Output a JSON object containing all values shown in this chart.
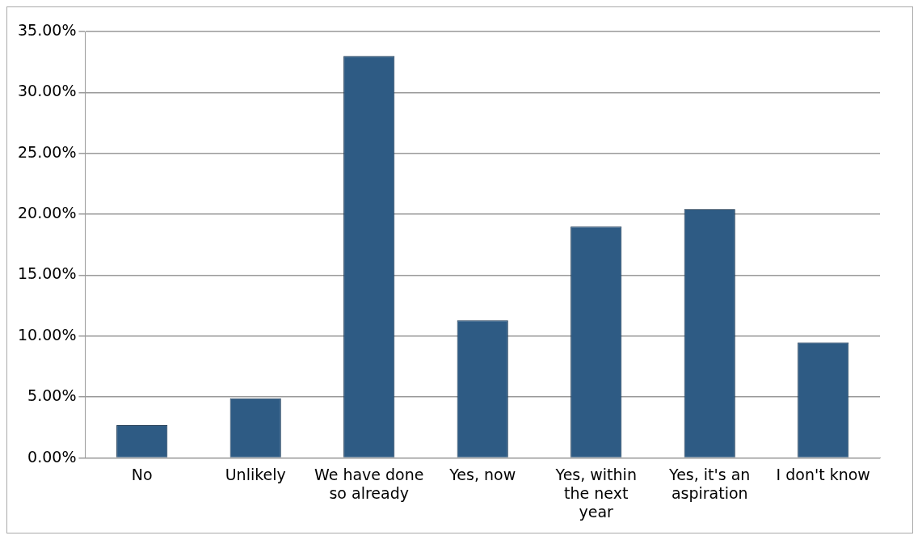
{
  "chart_data": {
    "type": "bar",
    "categories": [
      "No",
      "Unlikely",
      "We have done so already",
      "Yes, now",
      "Yes, within the next year",
      "Yes, it's an aspiration",
      "I don't know"
    ],
    "values": [
      2.7,
      4.9,
      33,
      11.3,
      19,
      20.4,
      9.5
    ],
    "color": "#2e5b84",
    "ylim": [
      0,
      35
    ],
    "yticks": [
      {
        "value": 0,
        "label": "0.00%"
      },
      {
        "value": 5,
        "label": "5.00%"
      },
      {
        "value": 10,
        "label": "10.00%"
      },
      {
        "value": 15,
        "label": "15.00%"
      },
      {
        "value": 20,
        "label": "20.00%"
      },
      {
        "value": 25,
        "label": "25.00%"
      },
      {
        "value": 30,
        "label": "30.00%"
      },
      {
        "value": 35,
        "label": "35.00%"
      }
    ],
    "grid": "y",
    "legend": false
  }
}
